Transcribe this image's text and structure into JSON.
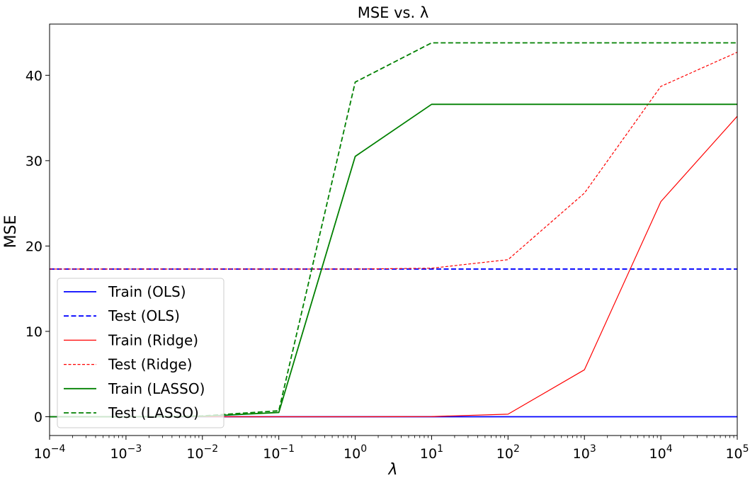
{
  "chart_data": {
    "type": "line",
    "title": "MSE vs. λ",
    "xlabel": "λ",
    "ylabel": "MSE",
    "xscale": "log",
    "xlim": [
      0.0001,
      100000
    ],
    "ylim": [
      -2.2,
      46
    ],
    "grid": false,
    "legend_position": "lower-left",
    "x_ticks": [
      {
        "base": "10",
        "exp": "−4",
        "value": 0.0001
      },
      {
        "base": "10",
        "exp": "−3",
        "value": 0.001
      },
      {
        "base": "10",
        "exp": "−2",
        "value": 0.01
      },
      {
        "base": "10",
        "exp": "−1",
        "value": 0.1
      },
      {
        "base": "10",
        "exp": "0",
        "value": 1
      },
      {
        "base": "10",
        "exp": "1",
        "value": 10
      },
      {
        "base": "10",
        "exp": "2",
        "value": 100
      },
      {
        "base": "10",
        "exp": "3",
        "value": 1000
      },
      {
        "base": "10",
        "exp": "4",
        "value": 10000
      },
      {
        "base": "10",
        "exp": "5",
        "value": 100000
      }
    ],
    "y_ticks": [
      0,
      10,
      20,
      30,
      40
    ],
    "x": [
      0.0001,
      0.001,
      0.01,
      0.1,
      1,
      10,
      100,
      1000,
      10000,
      100000
    ],
    "series": [
      {
        "name": "Train (OLS)",
        "color": "#0000ff",
        "dash": "solid",
        "width": 1.8,
        "values": [
          0,
          0,
          0,
          0,
          0,
          0,
          0,
          0,
          0,
          0
        ]
      },
      {
        "name": "Test (OLS)",
        "color": "#0000ff",
        "dash": "dashed",
        "width": 1.8,
        "values": [
          17.3,
          17.3,
          17.3,
          17.3,
          17.3,
          17.3,
          17.3,
          17.3,
          17.3,
          17.3
        ]
      },
      {
        "name": "Train (Ridge)",
        "color": "#ff0000",
        "dash": "solid",
        "width": 1.2,
        "values": [
          0,
          0,
          0,
          0,
          0,
          0.02,
          0.3,
          5.5,
          25.2,
          35.2
        ]
      },
      {
        "name": "Test (Ridge)",
        "color": "#ff0000",
        "dash": "dashed",
        "width": 1.2,
        "values": [
          17.3,
          17.3,
          17.3,
          17.3,
          17.3,
          17.4,
          18.4,
          26.2,
          38.7,
          42.7
        ]
      },
      {
        "name": "Train (LASSO)",
        "color": "#008000",
        "dash": "solid",
        "width": 1.8,
        "values": [
          0,
          0,
          0.05,
          0.5,
          30.5,
          36.6,
          36.6,
          36.6,
          36.6,
          36.6
        ]
      },
      {
        "name": "Test (LASSO)",
        "color": "#008000",
        "dash": "dashed",
        "width": 1.8,
        "values": [
          0,
          0,
          0.1,
          0.7,
          39.2,
          43.8,
          43.8,
          43.8,
          43.8,
          43.8
        ]
      }
    ]
  }
}
